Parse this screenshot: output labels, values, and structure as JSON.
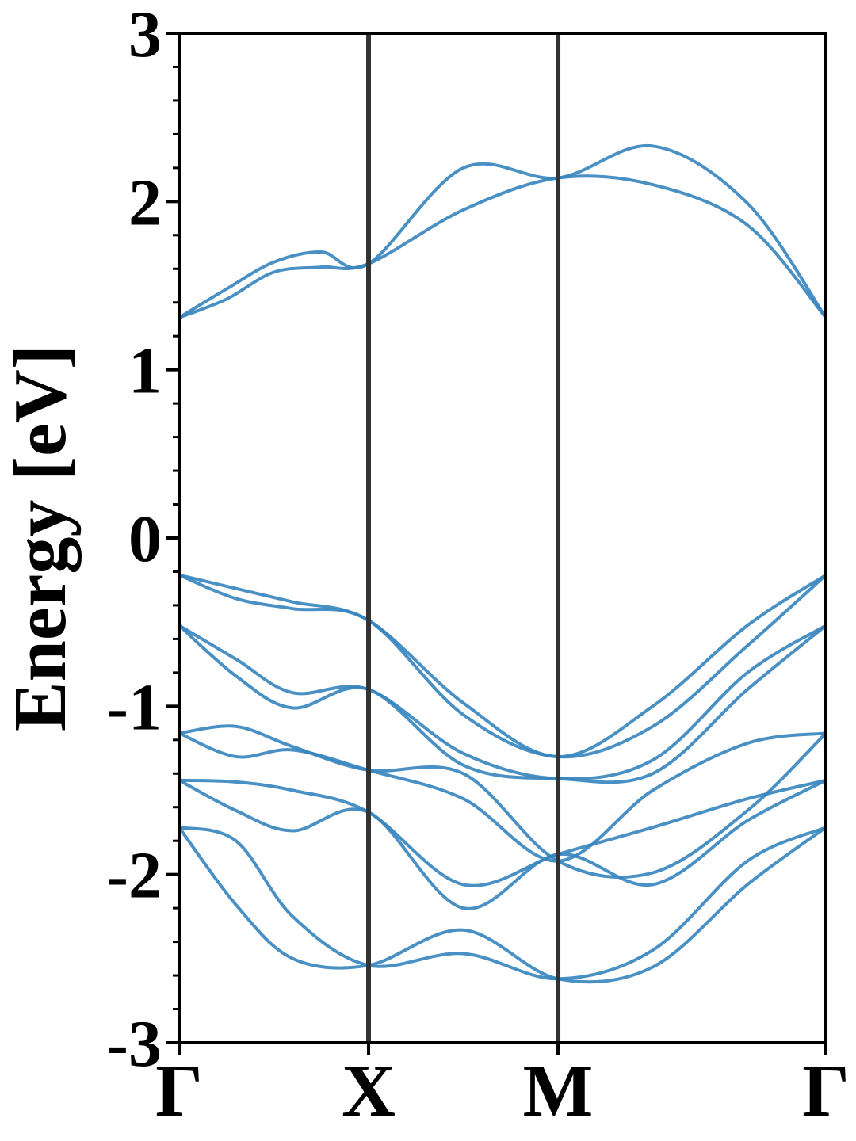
{
  "chart_data": {
    "type": "line",
    "title": "",
    "xlabel": "",
    "ylabel": "Energy [eV]",
    "ylim": [
      -3,
      3
    ],
    "yticks": [
      3,
      2,
      1,
      0,
      -1,
      -2,
      -3
    ],
    "ytick_labels": [
      "3",
      "2",
      "1",
      "0",
      "-1",
      "-2",
      "-3"
    ],
    "kpath": [
      {
        "label": "Γ",
        "x": 0.0
      },
      {
        "label": "X",
        "x": 1.0
      },
      {
        "label": "M",
        "x": 2.0
      },
      {
        "label": "Γ",
        "x": 3.414
      }
    ],
    "grid": false,
    "line_color": "#3a87bf",
    "vline_color": "#333333",
    "series": [
      {
        "points": [
          [
            0.0,
            1.31
          ],
          [
            0.25,
            1.48
          ],
          [
            0.5,
            1.64
          ],
          [
            0.75,
            1.7
          ],
          [
            1.0,
            1.63
          ],
          [
            1.5,
            2.2
          ],
          [
            2.0,
            2.14
          ],
          [
            2.5,
            2.33
          ],
          [
            3.0,
            1.99
          ],
          [
            3.414,
            1.31
          ]
        ]
      },
      {
        "points": [
          [
            0.0,
            1.31
          ],
          [
            0.25,
            1.42
          ],
          [
            0.5,
            1.58
          ],
          [
            0.75,
            1.61
          ],
          [
            1.0,
            1.63
          ],
          [
            1.5,
            1.95
          ],
          [
            2.0,
            2.14
          ],
          [
            2.5,
            2.1
          ],
          [
            3.0,
            1.86
          ],
          [
            3.414,
            1.31
          ]
        ]
      },
      {
        "points": [
          [
            0.0,
            -0.22
          ],
          [
            0.3,
            -0.3
          ],
          [
            0.6,
            -0.38
          ],
          [
            1.0,
            -0.49
          ],
          [
            1.5,
            -0.98
          ],
          [
            2.0,
            -1.3
          ],
          [
            2.5,
            -1.0
          ],
          [
            3.0,
            -0.52
          ],
          [
            3.414,
            -0.22
          ]
        ]
      },
      {
        "points": [
          [
            0.0,
            -0.22
          ],
          [
            0.3,
            -0.36
          ],
          [
            0.6,
            -0.42
          ],
          [
            1.0,
            -0.49
          ],
          [
            1.5,
            -1.05
          ],
          [
            2.0,
            -1.3
          ],
          [
            2.5,
            -1.12
          ],
          [
            3.0,
            -0.64
          ],
          [
            3.414,
            -0.22
          ]
        ]
      },
      {
        "points": [
          [
            0.0,
            -0.52
          ],
          [
            0.3,
            -0.72
          ],
          [
            0.6,
            -0.92
          ],
          [
            1.0,
            -0.9
          ],
          [
            1.5,
            -1.28
          ],
          [
            2.0,
            -1.43
          ],
          [
            2.5,
            -1.32
          ],
          [
            3.0,
            -0.8
          ],
          [
            3.414,
            -0.52
          ]
        ]
      },
      {
        "points": [
          [
            0.0,
            -0.52
          ],
          [
            0.3,
            -0.82
          ],
          [
            0.6,
            -1.01
          ],
          [
            1.0,
            -0.9
          ],
          [
            1.5,
            -1.35
          ],
          [
            2.0,
            -1.43
          ],
          [
            2.5,
            -1.4
          ],
          [
            3.0,
            -0.9
          ],
          [
            3.414,
            -0.52
          ]
        ]
      },
      {
        "points": [
          [
            0.0,
            -1.16
          ],
          [
            0.3,
            -1.12
          ],
          [
            0.6,
            -1.24
          ],
          [
            1.0,
            -1.38
          ],
          [
            1.5,
            -1.4
          ],
          [
            2.0,
            -1.92
          ],
          [
            2.5,
            -1.99
          ],
          [
            3.0,
            -1.62
          ],
          [
            3.414,
            -1.16
          ]
        ]
      },
      {
        "points": [
          [
            0.0,
            -1.16
          ],
          [
            0.3,
            -1.3
          ],
          [
            0.6,
            -1.26
          ],
          [
            1.0,
            -1.38
          ],
          [
            1.5,
            -1.55
          ],
          [
            2.0,
            -1.92
          ],
          [
            2.5,
            -1.5
          ],
          [
            3.0,
            -1.22
          ],
          [
            3.414,
            -1.16
          ]
        ]
      },
      {
        "points": [
          [
            0.0,
            -1.44
          ],
          [
            0.3,
            -1.45
          ],
          [
            0.6,
            -1.5
          ],
          [
            1.0,
            -1.63
          ],
          [
            1.5,
            -2.06
          ],
          [
            2.0,
            -1.88
          ],
          [
            2.5,
            -1.72
          ],
          [
            3.0,
            -1.55
          ],
          [
            3.414,
            -1.44
          ]
        ]
      },
      {
        "points": [
          [
            0.0,
            -1.44
          ],
          [
            0.3,
            -1.62
          ],
          [
            0.6,
            -1.74
          ],
          [
            1.0,
            -1.63
          ],
          [
            1.5,
            -2.2
          ],
          [
            2.0,
            -1.88
          ],
          [
            2.5,
            -2.06
          ],
          [
            3.0,
            -1.68
          ],
          [
            3.414,
            -1.44
          ]
        ]
      },
      {
        "points": [
          [
            0.0,
            -1.72
          ],
          [
            0.3,
            -1.8
          ],
          [
            0.6,
            -2.25
          ],
          [
            1.0,
            -2.54
          ],
          [
            1.5,
            -2.47
          ],
          [
            2.0,
            -2.62
          ],
          [
            2.5,
            -2.45
          ],
          [
            3.0,
            -1.92
          ],
          [
            3.414,
            -1.72
          ]
        ]
      },
      {
        "points": [
          [
            0.0,
            -1.72
          ],
          [
            0.3,
            -2.18
          ],
          [
            0.6,
            -2.5
          ],
          [
            1.0,
            -2.54
          ],
          [
            1.5,
            -2.33
          ],
          [
            2.0,
            -2.62
          ],
          [
            2.5,
            -2.55
          ],
          [
            3.0,
            -2.06
          ],
          [
            3.414,
            -1.72
          ]
        ]
      }
    ]
  }
}
